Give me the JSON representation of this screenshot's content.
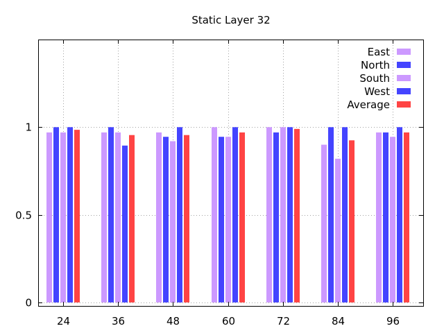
{
  "chart_data": {
    "type": "bar",
    "title": "Static Layer 32",
    "xlabel": "",
    "ylabel": "",
    "categories": [
      "24",
      "36",
      "48",
      "60",
      "72",
      "84",
      "96"
    ],
    "ylim": [
      -0.02,
      1.5
    ],
    "yticks": [
      {
        "value": 0,
        "label": "0"
      },
      {
        "value": 0.5,
        "label": "0.5"
      },
      {
        "value": 1,
        "label": "1"
      }
    ],
    "grid": true,
    "legend_position": "top-right",
    "series": [
      {
        "name": "East",
        "color": "#cc99ff",
        "values": [
          0.97,
          0.97,
          0.97,
          1.0,
          1.0,
          0.9,
          0.97
        ]
      },
      {
        "name": "North",
        "color": "#4444ff",
        "values": [
          1.0,
          1.0,
          0.945,
          0.945,
          0.97,
          1.0,
          0.97
        ]
      },
      {
        "name": "South",
        "color": "#cc99ff",
        "values": [
          0.97,
          0.97,
          0.92,
          0.945,
          1.0,
          0.82,
          0.945
        ]
      },
      {
        "name": "West",
        "color": "#4444ff",
        "values": [
          1.0,
          0.895,
          1.0,
          1.0,
          1.0,
          1.0,
          1.0
        ]
      },
      {
        "name": "Average",
        "color": "#ff4444",
        "values": [
          0.985,
          0.955,
          0.955,
          0.97,
          0.99,
          0.925,
          0.97
        ]
      }
    ]
  }
}
